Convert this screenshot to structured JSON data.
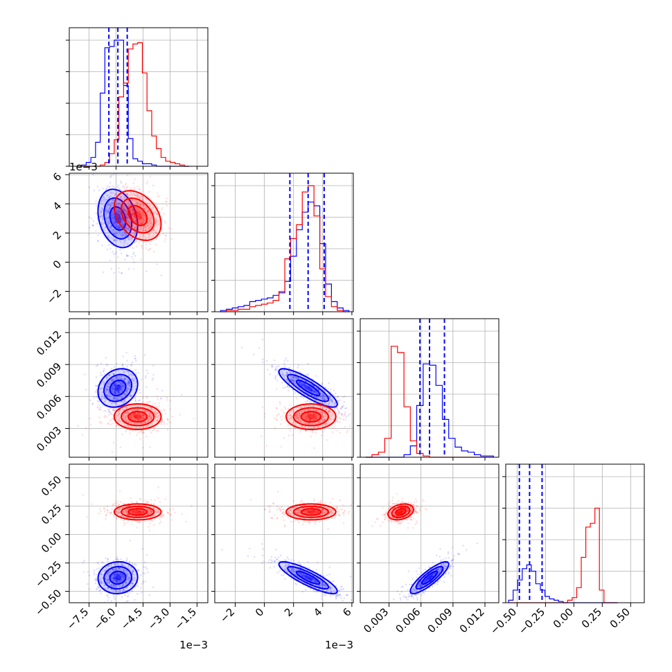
{
  "chart_data": {
    "type": "corner",
    "variables": [
      {
        "ticks": [
          "−7.5",
          "−6.0",
          "−4.5",
          "−3.0",
          "−1.5"
        ],
        "tick_values": [
          -7.5,
          -6.0,
          -4.5,
          -3.0,
          -1.5
        ],
        "range": [
          -8.6,
          -0.9
        ],
        "multiplier": "1e−3"
      },
      {
        "ticks": [
          "−2",
          "0",
          "2",
          "4",
          "6"
        ],
        "tick_values": [
          -2,
          0,
          2,
          4,
          6
        ],
        "range": [
          -3.4,
          6.1
        ],
        "multiplier": "1e−3",
        "y_ticks": [
          "−2",
          "0",
          "2",
          "4",
          "6"
        ],
        "y_multiplier": "1e−3"
      },
      {
        "ticks": [
          "0.003",
          "0.006",
          "0.009",
          "0.012"
        ],
        "tick_values": [
          0.003,
          0.006,
          0.009,
          0.012
        ],
        "range": [
          0.0003,
          0.0133
        ],
        "multiplier": ""
      },
      {
        "ticks": [
          "−0.50",
          "−0.25",
          "0.00",
          "0.25",
          "0.50"
        ],
        "tick_values": [
          -0.5,
          -0.25,
          0.0,
          0.25,
          0.5
        ],
        "range": [
          -0.6,
          0.62
        ],
        "multiplier": ""
      }
    ],
    "series": [
      {
        "color": "#0000ff",
        "means": [
          -5.9,
          3.0,
          0.0068,
          -0.38
        ],
        "sds": [
          0.55,
          1.0,
          0.0009,
          0.07
        ],
        "correlations": [
          [
            0,
            1,
            -0.25
          ],
          [
            0,
            2,
            0.2
          ],
          [
            0,
            3,
            0.05
          ],
          [
            1,
            2,
            -0.85
          ],
          [
            1,
            3,
            -0.85
          ],
          [
            2,
            3,
            0.85
          ]
        ]
      },
      {
        "color": "#ff0000",
        "means": [
          -4.8,
          3.2,
          0.0041,
          0.2
        ],
        "sds": [
          0.65,
          0.85,
          0.0006,
          0.035
        ],
        "correlations": [
          [
            0,
            1,
            -0.35
          ],
          [
            0,
            2,
            0.0
          ],
          [
            0,
            3,
            0.0
          ],
          [
            1,
            2,
            0.0
          ],
          [
            1,
            3,
            0.0
          ],
          [
            2,
            3,
            0.3
          ]
        ]
      }
    ],
    "histograms": [
      {
        "bins": [
          -7.92,
          -7.66,
          -7.4,
          -7.14,
          -6.88,
          -6.62,
          -6.36,
          -6.1,
          -5.84,
          -5.58,
          -5.32,
          -5.06,
          -4.8,
          -4.54,
          -4.28,
          -4.02,
          -3.76,
          -3.5,
          -3.24,
          -2.98,
          -2.72,
          -2.46,
          -2.2,
          -1.94
        ],
        "blue": [
          0.01,
          0.03,
          0.07,
          0.19,
          0.58,
          0.94,
          0.95,
          1.0,
          1.0,
          0.64,
          0.22,
          0.06,
          0.04,
          0.02,
          0.02,
          0.01,
          0.0,
          0.0,
          0.0,
          0.0,
          0.0,
          0.0,
          0.0
        ],
        "red": [
          0.0,
          0.0,
          0.0,
          0.0,
          0.01,
          0.03,
          0.1,
          0.21,
          0.55,
          0.66,
          0.93,
          0.97,
          0.98,
          0.74,
          0.44,
          0.24,
          0.14,
          0.07,
          0.04,
          0.03,
          0.02,
          0.01,
          0.0
        ],
        "quantiles": [
          -6.4,
          -5.9,
          -5.38
        ]
      },
      {
        "bins": [
          -3.0,
          -2.6,
          -2.2,
          -1.8,
          -1.4,
          -1.0,
          -0.6,
          -0.2,
          0.2,
          0.6,
          1.0,
          1.4,
          1.8,
          2.2,
          2.6,
          3.0,
          3.4,
          3.8,
          4.2,
          4.6,
          5.0,
          5.4,
          5.8
        ],
        "blue": [
          0.01,
          0.02,
          0.03,
          0.04,
          0.05,
          0.08,
          0.09,
          0.1,
          0.11,
          0.13,
          0.15,
          0.24,
          0.44,
          0.65,
          0.79,
          0.87,
          0.84,
          0.54,
          0.22,
          0.08,
          0.03,
          0.01
        ],
        "red": [
          0.0,
          0.01,
          0.01,
          0.02,
          0.02,
          0.04,
          0.05,
          0.06,
          0.07,
          0.09,
          0.16,
          0.42,
          0.58,
          0.69,
          0.95,
          1.0,
          0.76,
          0.34,
          0.12,
          0.04,
          0.01,
          0.0
        ],
        "quantiles": [
          1.75,
          3.0,
          4.1
        ]
      },
      {
        "bins": [
          0.0008,
          0.0014,
          0.002,
          0.0026,
          0.0032,
          0.0038,
          0.0044,
          0.005,
          0.0056,
          0.0062,
          0.0068,
          0.0074,
          0.008,
          0.0086,
          0.0092,
          0.0098,
          0.0104,
          0.011,
          0.0116,
          0.0122,
          0.0128
        ],
        "blue": [
          0.0,
          0.0,
          0.0,
          0.0,
          0.0,
          0.0,
          0.02,
          0.09,
          0.41,
          0.74,
          0.73,
          0.57,
          0.3,
          0.15,
          0.08,
          0.05,
          0.04,
          0.02,
          0.01,
          0.01
        ],
        "red": [
          0.0,
          0.02,
          0.04,
          0.15,
          0.88,
          0.83,
          0.4,
          0.13,
          0.03,
          0.01,
          0.0,
          0.0,
          0.0,
          0.0,
          0.0,
          0.0,
          0.0,
          0.0,
          0.0,
          0.0
        ],
        "quantiles": [
          0.0059,
          0.0068,
          0.0082
        ]
      },
      {
        "bins": [
          -0.575,
          -0.535,
          -0.495,
          -0.455,
          -0.415,
          -0.375,
          -0.335,
          -0.295,
          -0.255,
          -0.215,
          -0.175,
          -0.135,
          -0.095,
          -0.055,
          -0.015,
          0.025,
          0.065,
          0.105,
          0.145,
          0.185,
          0.225,
          0.265,
          0.305,
          0.345,
          0.385
        ],
        "blue": [
          0.02,
          0.1,
          0.18,
          0.27,
          0.3,
          0.25,
          0.15,
          0.1,
          0.05,
          0.03,
          0.02,
          0.01,
          0.0,
          0.0,
          0.0,
          0.0,
          0.0,
          0.0,
          0.0,
          0.0,
          0.0,
          0.0,
          0.0,
          0.0
        ],
        "red": [
          0.0,
          0.0,
          0.0,
          0.0,
          0.0,
          0.0,
          0.0,
          0.0,
          0.0,
          0.0,
          0.0,
          0.0,
          0.0,
          0.02,
          0.04,
          0.12,
          0.36,
          0.6,
          0.63,
          0.75,
          0.1,
          0.0,
          0.0,
          0.0
        ],
        "quantiles": [
          -0.48,
          -0.39,
          -0.28
        ]
      }
    ],
    "grid": true,
    "quantile_line_style": "dashed"
  }
}
